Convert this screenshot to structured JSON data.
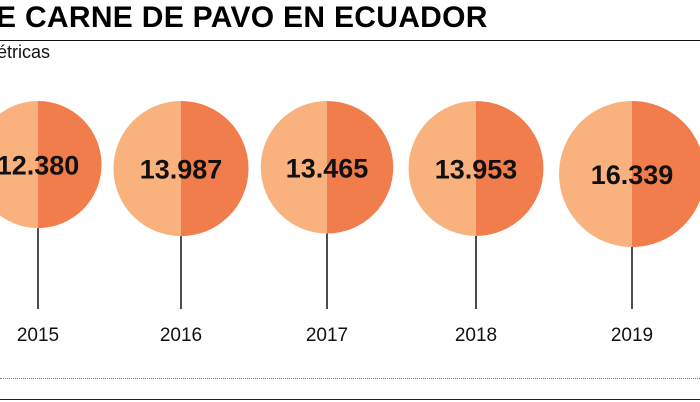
{
  "header": {
    "title": "E CARNE DE PAVO EN ECUADOR",
    "subtitle": "étricas"
  },
  "colors": {
    "light_half": "#F9B27E",
    "dark_half": "#F27D4C",
    "text": "#111111"
  },
  "chart_data": {
    "type": "bubble",
    "title": "E CARNE DE PAVO EN ECUADOR",
    "subtitle": "étricas",
    "categories": [
      "2015",
      "2016",
      "2017",
      "2018",
      "2019"
    ],
    "values": [
      12380,
      13987,
      13465,
      13953,
      16339
    ],
    "value_labels": [
      "12.380",
      "13.987",
      "13.465",
      "13.953",
      "16.339"
    ],
    "legend": "none",
    "grid": false
  }
}
